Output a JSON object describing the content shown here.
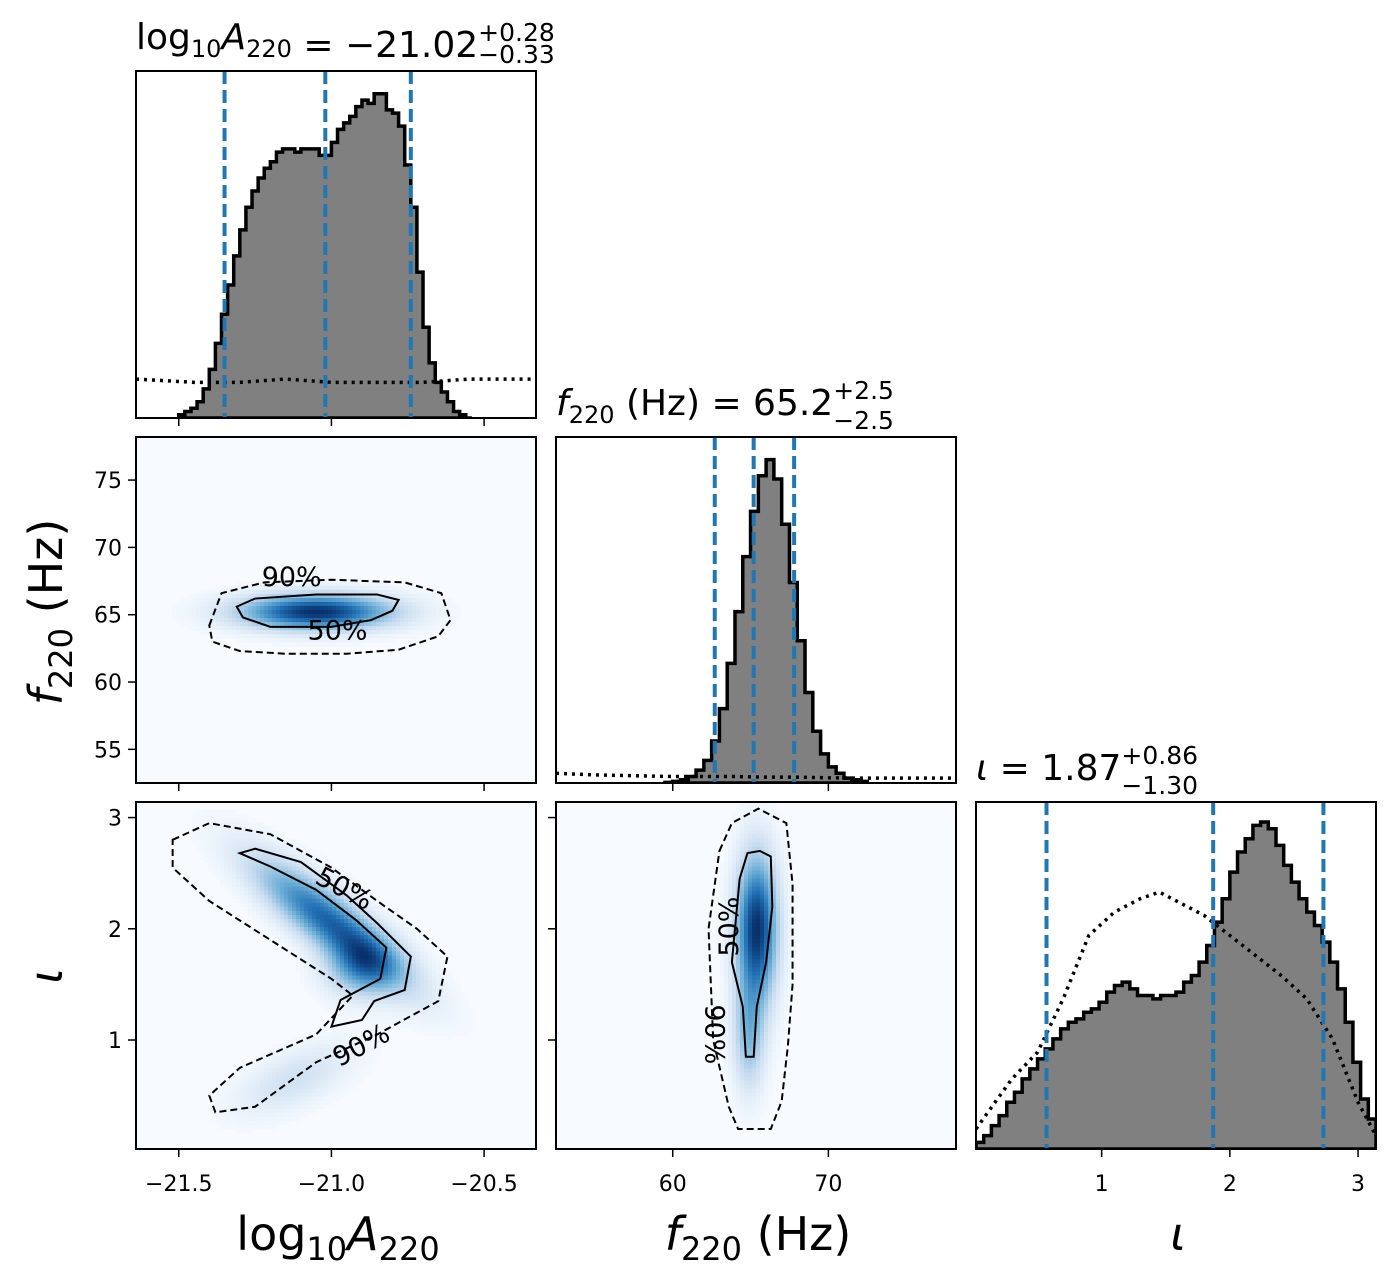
{
  "chart_data": {
    "type": "corner",
    "colors": {
      "hist_fill": "#808080",
      "hist_edge": "#000000",
      "quantile_line": "#1f77b4",
      "density_low": "#f7fbff",
      "density_high": "#08306b",
      "contour": "#000000"
    },
    "parameters": [
      {
        "label_prefix": "log",
        "label_sub1": "10",
        "label_main": "A",
        "label_sub2": "220",
        "label_suffix": "",
        "title_value": " = −21.02",
        "title_plus": "+0.28",
        "title_minus": "−0.33",
        "range": [
          -21.64,
          -20.33
        ],
        "ticks": [
          -21.5,
          -21.0,
          -20.5
        ],
        "tick_labels": [
          "−21.5",
          "−21.0",
          "−20.5"
        ],
        "quantiles": [
          -21.35,
          -21.02,
          -20.74
        ],
        "hist": {
          "start": -21.5,
          "width": 0.02,
          "counts": [
            0.01,
            0.02,
            0.03,
            0.05,
            0.09,
            0.15,
            0.23,
            0.32,
            0.41,
            0.5,
            0.58,
            0.65,
            0.7,
            0.74,
            0.77,
            0.79,
            0.82,
            0.83,
            0.83,
            0.82,
            0.83,
            0.83,
            0.83,
            0.81,
            0.81,
            0.85,
            0.89,
            0.91,
            0.93,
            0.96,
            0.98,
            0.97,
            1.0,
            1.0,
            0.95,
            0.94,
            0.9,
            0.78,
            0.65,
            0.45,
            0.28,
            0.17,
            0.11,
            0.08,
            0.05,
            0.02,
            0.01,
            0.0
          ]
        },
        "prior": {
          "x": [
            -21.64,
            -21.45,
            -21.3,
            -21.15,
            -21.0,
            -20.85,
            -20.7,
            -20.55,
            -20.33
          ],
          "y": [
            0.12,
            0.11,
            0.11,
            0.12,
            0.11,
            0.11,
            0.11,
            0.12,
            0.12
          ]
        },
        "hist_ymax": 1.07
      },
      {
        "label_prefix": "",
        "label_sub1": "",
        "label_main": "f",
        "label_sub2": "220",
        "label_suffix": " (Hz)",
        "title_value": " = 65.2",
        "title_plus": "+2.5",
        "title_minus": "−2.5",
        "range": [
          52.5,
          78.2
        ],
        "ticks": [
          55,
          60,
          65,
          70,
          75
        ],
        "tick_labels": [
          "55",
          "60",
          "65",
          "70",
          "75"
        ],
        "x_ticks": [
          60,
          70
        ],
        "x_tick_labels": [
          "60",
          "70"
        ],
        "quantiles": [
          62.7,
          65.2,
          67.8
        ],
        "hist": {
          "start": 59.5,
          "width": 0.5,
          "counts": [
            0.002,
            0.005,
            0.01,
            0.02,
            0.04,
            0.07,
            0.13,
            0.23,
            0.37,
            0.53,
            0.7,
            0.84,
            0.95,
            1.0,
            0.94,
            0.8,
            0.62,
            0.44,
            0.28,
            0.16,
            0.09,
            0.05,
            0.03,
            0.015,
            0.01,
            0.005
          ]
        },
        "prior": {
          "x": [
            52.5,
            55,
            58,
            60,
            62,
            64,
            66,
            68,
            70,
            72,
            75,
            78.2
          ],
          "y": [
            0.03,
            0.025,
            0.022,
            0.02,
            0.02,
            0.02,
            0.018,
            0.018,
            0.016,
            0.015,
            0.015,
            0.015
          ]
        },
        "hist_ymax": 1.07
      },
      {
        "label_prefix": "",
        "label_sub1": "",
        "label_main": "ι",
        "label_sub2": "",
        "label_suffix": "",
        "title_value": " = 1.87",
        "title_plus": "+0.86",
        "title_minus": "−1.30",
        "range": [
          0.02,
          3.14
        ],
        "ticks": [
          1,
          2,
          3
        ],
        "tick_labels": [
          "1",
          "2",
          "3"
        ],
        "quantiles": [
          0.57,
          1.87,
          2.73
        ],
        "hist": {
          "start": 0.02,
          "width": 0.06,
          "counts": [
            0.02,
            0.04,
            0.07,
            0.1,
            0.14,
            0.17,
            0.21,
            0.24,
            0.27,
            0.3,
            0.33,
            0.36,
            0.38,
            0.39,
            0.41,
            0.42,
            0.44,
            0.47,
            0.49,
            0.5,
            0.48,
            0.46,
            0.46,
            0.45,
            0.46,
            0.46,
            0.47,
            0.5,
            0.52,
            0.56,
            0.61,
            0.68,
            0.75,
            0.83,
            0.89,
            0.93,
            0.97,
            0.98,
            0.96,
            0.91,
            0.85,
            0.8,
            0.75,
            0.71,
            0.67,
            0.62,
            0.56,
            0.48,
            0.38,
            0.26,
            0.15,
            0.09
          ]
        },
        "prior": {
          "x": [
            0.02,
            0.15,
            0.3,
            0.5,
            0.7,
            0.9,
            1.1,
            1.3,
            1.45,
            1.6,
            1.8,
            2.0,
            2.2,
            2.4,
            2.6,
            2.8,
            3.0,
            3.14
          ],
          "y": [
            0.06,
            0.13,
            0.21,
            0.29,
            0.45,
            0.64,
            0.71,
            0.75,
            0.77,
            0.74,
            0.7,
            0.64,
            0.58,
            0.52,
            0.45,
            0.33,
            0.14,
            0.04
          ]
        },
        "hist_ymax": 1.04
      }
    ],
    "pairs": [
      {
        "row": 1,
        "col": 0,
        "components": [
          {
            "mx": -21.05,
            "my": 65.2,
            "sx": 0.17,
            "sy": 0.9,
            "rho": 0.0,
            "w": 1.0
          }
        ],
        "contours": [
          {
            "label": "50%",
            "dashed": false,
            "points": [
              [
                -21.31,
                65.6
              ],
              [
                -21.25,
                66.2
              ],
              [
                -21.05,
                66.5
              ],
              [
                -20.85,
                66.5
              ],
              [
                -20.78,
                66.1
              ],
              [
                -20.8,
                65.3
              ],
              [
                -20.87,
                64.6
              ],
              [
                -21.0,
                64.1
              ],
              [
                -21.2,
                64.1
              ],
              [
                -21.29,
                64.8
              ],
              [
                -21.31,
                65.6
              ]
            ],
            "label_pos": [
              -20.98,
              63.7
            ],
            "label_rot": 0
          },
          {
            "label": "90%",
            "dashed": false,
            "points": [
              [
                -21.4,
                64.2
              ],
              [
                -21.36,
                66.6
              ],
              [
                -21.22,
                67.4
              ],
              [
                -21.0,
                67.6
              ],
              [
                -20.76,
                67.4
              ],
              [
                -20.64,
                66.6
              ],
              [
                -20.61,
                64.6
              ],
              [
                -20.65,
                63.4
              ],
              [
                -20.78,
                62.4
              ],
              [
                -20.95,
                62.1
              ],
              [
                -21.15,
                62.1
              ],
              [
                -21.3,
                62.3
              ],
              [
                -21.39,
                63.0
              ],
              [
                -21.4,
                64.2
              ]
            ],
            "label_pos": [
              -21.13,
              67.7
            ],
            "label_rot": 0
          }
        ]
      },
      {
        "row": 2,
        "col": 0,
        "components": [
          {
            "mx": -21.0,
            "my": 2.05,
            "sx": 0.17,
            "sy": 0.38,
            "rho": -0.85,
            "w": 0.9
          },
          {
            "mx": -20.9,
            "my": 1.65,
            "sx": 0.08,
            "sy": 0.18,
            "rho": 0.0,
            "w": 0.55
          },
          {
            "mx": -21.12,
            "my": 0.65,
            "sx": 0.13,
            "sy": 0.22,
            "rho": 0.6,
            "w": 0.22
          }
        ],
        "contours": [
          {
            "label": "50%",
            "dashed": false,
            "points": [
              [
                -21.3,
                2.68
              ],
              [
                -21.2,
                2.56
              ],
              [
                -21.05,
                2.35
              ],
              [
                -20.92,
                2.08
              ],
              [
                -20.82,
                1.83
              ],
              [
                -20.84,
                1.55
              ],
              [
                -20.97,
                1.36
              ],
              [
                -21.0,
                1.12
              ],
              [
                -20.9,
                1.18
              ],
              [
                -20.86,
                1.35
              ],
              [
                -20.76,
                1.45
              ],
              [
                -20.74,
                1.75
              ],
              [
                -20.85,
                2.05
              ],
              [
                -20.95,
                2.3
              ],
              [
                -21.1,
                2.6
              ],
              [
                -21.25,
                2.72
              ],
              [
                -21.3,
                2.68
              ]
            ],
            "label_pos": [
              -20.96,
              2.35
            ],
            "label_rot": 28
          },
          {
            "label": "90%",
            "dashed": true,
            "points": [
              [
                -21.52,
                2.8
              ],
              [
                -21.4,
                2.95
              ],
              [
                -21.2,
                2.85
              ],
              [
                -21.0,
                2.55
              ],
              [
                -20.85,
                2.25
              ],
              [
                -20.72,
                2.0
              ],
              [
                -20.62,
                1.75
              ],
              [
                -20.65,
                1.35
              ],
              [
                -20.85,
                1.05
              ],
              [
                -21.05,
                0.8
              ],
              [
                -21.25,
                0.4
              ],
              [
                -21.38,
                0.35
              ],
              [
                -21.4,
                0.5
              ],
              [
                -21.3,
                0.75
              ],
              [
                -21.05,
                1.05
              ],
              [
                -20.93,
                1.4
              ],
              [
                -21.0,
                1.55
              ],
              [
                -21.2,
                1.9
              ],
              [
                -21.4,
                2.25
              ],
              [
                -21.52,
                2.55
              ],
              [
                -21.52,
                2.8
              ]
            ],
            "label_pos": [
              -20.9,
              0.94
            ],
            "label_rot": -28
          }
        ]
      },
      {
        "row": 2,
        "col": 1,
        "components": [
          {
            "mx": 65.4,
            "my": 2.0,
            "sx": 0.9,
            "sy": 0.45,
            "rho": 0.0,
            "w": 1.0
          },
          {
            "mx": 64.9,
            "my": 1.05,
            "sx": 0.7,
            "sy": 0.35,
            "rho": 0.0,
            "w": 0.4
          }
        ],
        "contours": [
          {
            "label": "50%",
            "dashed": false,
            "points": [
              [
                64.8,
                2.68
              ],
              [
                64.3,
                2.45
              ],
              [
                63.8,
                1.7
              ],
              [
                64.5,
                1.3
              ],
              [
                64.7,
                0.85
              ],
              [
                65.2,
                0.85
              ],
              [
                65.4,
                1.3
              ],
              [
                66.0,
                1.7
              ],
              [
                66.4,
                2.2
              ],
              [
                66.3,
                2.65
              ],
              [
                65.6,
                2.7
              ],
              [
                64.8,
                2.68
              ]
            ],
            "label_pos": [
              63.7,
              2.02
            ],
            "label_rot": -90
          },
          {
            "label": "90%",
            "dashed": true,
            "points": [
              [
                63.0,
                2.7
              ],
              [
                63.8,
                2.95
              ],
              [
                65.5,
                3.08
              ],
              [
                67.3,
                2.95
              ],
              [
                67.7,
                2.4
              ],
              [
                67.7,
                1.5
              ],
              [
                67.4,
                0.95
              ],
              [
                67.0,
                0.45
              ],
              [
                66.3,
                0.2
              ],
              [
                64.2,
                0.2
              ],
              [
                63.6,
                0.4
              ],
              [
                62.6,
                1.0
              ],
              [
                62.3,
                2.0
              ],
              [
                63.0,
                2.7
              ]
            ],
            "label_pos": [
              62.6,
              1.05
            ],
            "label_rot": 90
          }
        ]
      }
    ]
  }
}
